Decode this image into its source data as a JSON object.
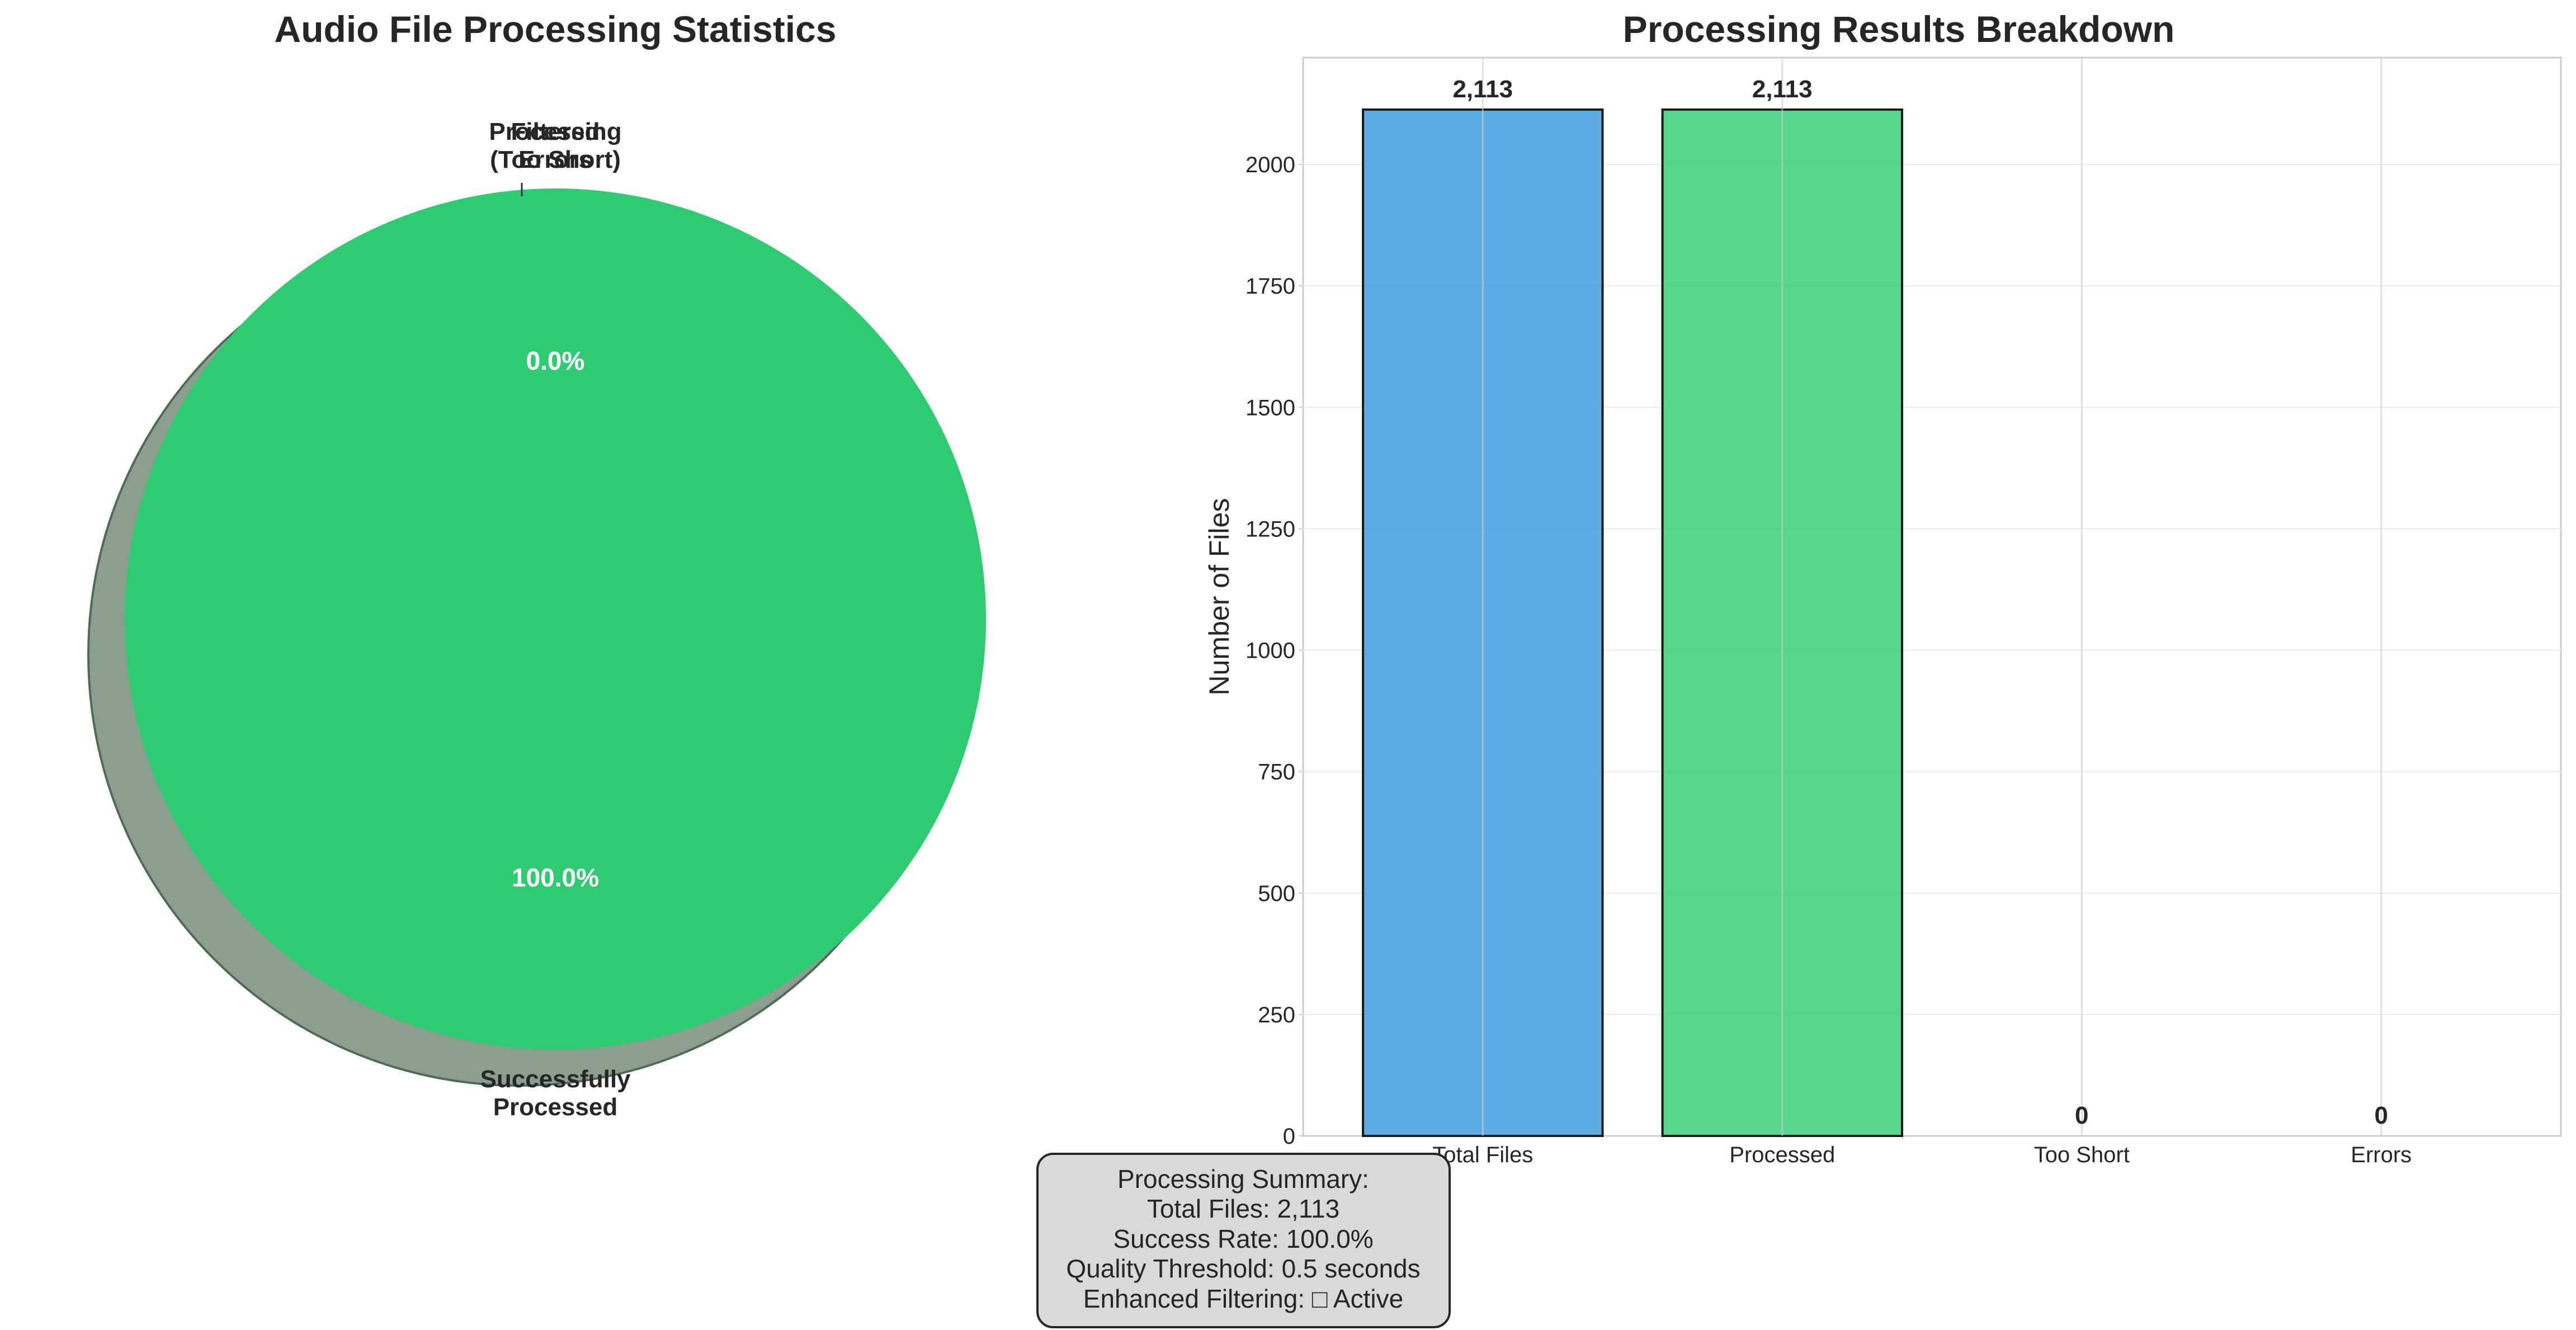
{
  "chart_data": [
    {
      "type": "pie",
      "title": "Audio File Processing Statistics",
      "slices": [
        {
          "label": "Successfully Processed",
          "label_lines": [
            "Successfully",
            "Processed"
          ],
          "value": 2113,
          "percent_label": "100.0%",
          "color": "#2ecc71"
        },
        {
          "label": "Filtered (Too Short)",
          "label_lines": [
            "Filtered",
            "(Too Short)"
          ],
          "value": 0,
          "percent_label": "0.0%",
          "color": "#f39c12"
        },
        {
          "label": "Processing Errors",
          "label_lines": [
            "Processing",
            "Errors"
          ],
          "value": 0,
          "percent_label": "0.0%",
          "color": "#e74c3c"
        }
      ],
      "shadow": true,
      "shadow_color": "#8c9e8e"
    },
    {
      "type": "bar",
      "title": "Processing Results Breakdown",
      "categories": [
        "Total Files",
        "Processed",
        "Too Short",
        "Errors"
      ],
      "values": [
        2113,
        2113,
        0,
        0
      ],
      "value_labels": [
        "2,113",
        "2,113",
        "0",
        "0"
      ],
      "colors": [
        "#3498db",
        "#2ecc71",
        "#f39c12",
        "#e74c3c"
      ],
      "xlabel": "",
      "ylabel": "Number of Files",
      "ylim": [
        0,
        2220
      ],
      "yticks": [
        0,
        250,
        500,
        750,
        1000,
        1250,
        1500,
        1750,
        2000
      ],
      "grid": true
    }
  ],
  "summary": {
    "lines": [
      "Processing Summary:",
      "Total Files: 2,113",
      "Success Rate: 100.0%",
      "Quality Threshold: 0.5 seconds",
      "Enhanced Filtering: □ Active"
    ]
  }
}
